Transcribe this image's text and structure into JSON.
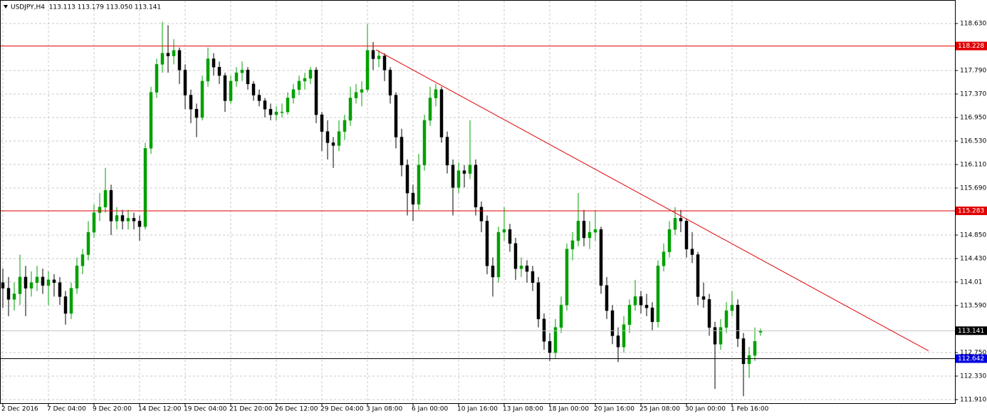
{
  "chart_data": {
    "type": "candlestick",
    "title": "USDJPY,H4  113.113 113.179 113.050 113.141",
    "up_color": "#00a000",
    "down_color": "#000000",
    "grid": true,
    "ylim": [
      111.846,
      119.05
    ],
    "yticks": [
      {
        "value": 118.63,
        "label": "118.630"
      },
      {
        "value": 117.79,
        "label": "117.790"
      },
      {
        "value": 117.37,
        "label": "117.370"
      },
      {
        "value": 116.95,
        "label": "116.950"
      },
      {
        "value": 116.53,
        "label": "116.530"
      },
      {
        "value": 116.11,
        "label": "116.110"
      },
      {
        "value": 115.69,
        "label": "115.690"
      },
      {
        "value": 114.85,
        "label": "114.850"
      },
      {
        "value": 114.43,
        "label": "114.430"
      },
      114.01,
      {
        "value": 113.59,
        "label": "113.590"
      },
      {
        "value": 112.75,
        "label": "112.750"
      },
      {
        "value": 112.33,
        "label": "112.330"
      },
      {
        "value": 111.91,
        "label": "111.910"
      }
    ],
    "levels": [
      {
        "value": 118.228,
        "line_color": "#e00000",
        "label_color": "#e00000"
      },
      {
        "value": 115.283,
        "line_color": "#e00000",
        "label_color": "#e00000"
      },
      {
        "value": 113.141,
        "line_color": "#c0c0c0",
        "label_color": "#000000"
      },
      {
        "value": 112.642,
        "line_color": "#000000",
        "label_color": "#0000e0"
      }
    ],
    "trendline": {
      "x": [
        65.5,
        162.5
      ],
      "values": [
        118.16,
        112.78
      ],
      "color": "#e00000"
    },
    "categories": [
      "2 Dec 2016",
      null,
      null,
      null,
      null,
      null,
      null,
      null,
      "7 Dec 04:00",
      null,
      null,
      null,
      null,
      null,
      null,
      null,
      "9 Dec 20:00",
      null,
      null,
      null,
      null,
      null,
      null,
      null,
      "14 Dec 12:00",
      null,
      null,
      null,
      null,
      null,
      null,
      null,
      "19 Dec 04:00",
      null,
      null,
      null,
      null,
      null,
      null,
      null,
      "21 Dec 20:00",
      null,
      null,
      null,
      null,
      null,
      null,
      null,
      "26 Dec 12:00",
      null,
      null,
      null,
      null,
      null,
      null,
      null,
      "29 Dec 04:00",
      null,
      null,
      null,
      null,
      null,
      null,
      null,
      "3 Jan 08:00",
      null,
      null,
      null,
      null,
      null,
      null,
      null,
      "6 Jan 00:00",
      null,
      null,
      null,
      null,
      null,
      null,
      null,
      "10 Jan 16:00",
      null,
      null,
      null,
      null,
      null,
      null,
      null,
      "13 Jan 08:00",
      null,
      null,
      null,
      null,
      null,
      null,
      null,
      "18 Jan 00:00",
      null,
      null,
      null,
      null,
      null,
      null,
      null,
      "20 Jan 16:00",
      null,
      null,
      null,
      null,
      null,
      null,
      null,
      "25 Jan 08:00",
      null,
      null,
      null,
      null,
      null,
      null,
      null,
      "30 Jan 00:00",
      null,
      null,
      null,
      null,
      null,
      null,
      null,
      "1 Feb 16:00",
      null,
      null,
      null,
      null,
      null
    ],
    "ohlc": [
      [
        114.0,
        114.25,
        113.55,
        113.9
      ],
      [
        113.9,
        114.1,
        113.4,
        113.7
      ],
      [
        113.7,
        114.0,
        113.5,
        113.8
      ],
      [
        113.8,
        114.5,
        113.6,
        114.1
      ],
      [
        114.1,
        114.3,
        113.4,
        113.9
      ],
      [
        113.9,
        114.2,
        113.75,
        114.0
      ],
      [
        114.0,
        114.3,
        113.85,
        114.1
      ],
      [
        114.1,
        114.25,
        113.8,
        113.95
      ],
      [
        113.95,
        114.2,
        113.6,
        114.05
      ],
      [
        114.05,
        114.15,
        113.75,
        114.0
      ],
      [
        114.0,
        114.1,
        113.6,
        113.75
      ],
      [
        113.75,
        113.85,
        113.25,
        113.45
      ],
      [
        113.45,
        114.0,
        113.35,
        113.9
      ],
      [
        113.9,
        114.45,
        113.8,
        114.3
      ],
      [
        114.3,
        114.6,
        114.15,
        114.5
      ],
      [
        114.5,
        115.1,
        114.4,
        114.9
      ],
      [
        114.9,
        115.4,
        114.8,
        115.25
      ],
      [
        115.25,
        115.6,
        115.1,
        115.35
      ],
      [
        115.35,
        116.05,
        115.25,
        115.65
      ],
      [
        115.65,
        115.75,
        114.85,
        115.1
      ],
      [
        115.1,
        115.35,
        114.95,
        115.2
      ],
      [
        115.2,
        115.3,
        114.95,
        115.1
      ],
      [
        115.1,
        115.3,
        114.95,
        115.15
      ],
      [
        115.15,
        115.25,
        114.95,
        115.1
      ],
      [
        115.1,
        115.2,
        114.75,
        115.0
      ],
      [
        115.0,
        116.5,
        114.95,
        116.4
      ],
      [
        116.4,
        117.5,
        116.3,
        117.4
      ],
      [
        117.4,
        118.0,
        117.3,
        117.9
      ],
      [
        117.9,
        118.66,
        117.75,
        118.1
      ],
      [
        118.1,
        118.6,
        117.75,
        118.05
      ],
      [
        118.05,
        118.35,
        117.9,
        118.15
      ],
      [
        118.15,
        118.2,
        117.55,
        117.8
      ],
      [
        117.8,
        117.9,
        117.1,
        117.35
      ],
      [
        117.35,
        117.45,
        116.85,
        117.1
      ],
      [
        117.1,
        117.2,
        116.6,
        116.95
      ],
      [
        116.95,
        117.7,
        116.9,
        117.6
      ],
      [
        117.6,
        118.2,
        117.5,
        118.0
      ],
      [
        118.0,
        118.1,
        117.7,
        117.85
      ],
      [
        117.85,
        117.95,
        117.55,
        117.7
      ],
      [
        117.7,
        117.75,
        117.05,
        117.25
      ],
      [
        117.25,
        117.7,
        117.2,
        117.6
      ],
      [
        117.6,
        117.85,
        117.5,
        117.75
      ],
      [
        117.75,
        117.95,
        117.6,
        117.8
      ],
      [
        117.8,
        117.85,
        117.45,
        117.55
      ],
      [
        117.55,
        117.6,
        117.25,
        117.35
      ],
      [
        117.35,
        117.45,
        117.15,
        117.25
      ],
      [
        117.25,
        117.3,
        116.95,
        117.1
      ],
      [
        117.1,
        117.2,
        116.9,
        117.0
      ],
      [
        117.0,
        117.15,
        116.9,
        117.05
      ],
      [
        117.05,
        117.2,
        116.95,
        117.05
      ],
      [
        117.05,
        117.4,
        117.0,
        117.3
      ],
      [
        117.3,
        117.55,
        117.2,
        117.45
      ],
      [
        117.45,
        117.7,
        117.35,
        117.6
      ],
      [
        117.6,
        117.75,
        117.45,
        117.65
      ],
      [
        117.65,
        117.85,
        117.55,
        117.8
      ],
      [
        117.8,
        117.85,
        116.85,
        117.0
      ],
      [
        117.0,
        117.05,
        116.35,
        116.7
      ],
      [
        116.7,
        116.9,
        116.2,
        116.5
      ],
      [
        116.5,
        116.6,
        116.05,
        116.45
      ],
      [
        116.45,
        116.9,
        116.35,
        116.7
      ],
      [
        116.7,
        117.0,
        116.55,
        116.9
      ],
      [
        116.9,
        117.5,
        116.8,
        117.3
      ],
      [
        117.3,
        117.55,
        117.2,
        117.4
      ],
      [
        117.4,
        117.6,
        117.15,
        117.45
      ],
      [
        117.45,
        118.62,
        117.4,
        118.15
      ],
      [
        118.15,
        118.3,
        117.8,
        118.0
      ],
      [
        118.0,
        118.15,
        117.85,
        118.05
      ],
      [
        118.05,
        118.1,
        117.6,
        117.8
      ],
      [
        117.8,
        117.85,
        117.2,
        117.35
      ],
      [
        117.35,
        117.4,
        116.4,
        116.6
      ],
      [
        116.6,
        116.75,
        115.9,
        116.1
      ],
      [
        116.1,
        116.2,
        115.2,
        115.6
      ],
      [
        115.6,
        115.75,
        115.1,
        115.4
      ],
      [
        115.4,
        116.3,
        115.3,
        116.1
      ],
      [
        116.1,
        117.0,
        116.0,
        116.9
      ],
      [
        116.9,
        117.5,
        116.8,
        117.3
      ],
      [
        117.3,
        117.55,
        117.15,
        117.45
      ],
      [
        117.45,
        117.5,
        116.5,
        116.6
      ],
      [
        116.6,
        116.7,
        115.95,
        116.1
      ],
      [
        116.1,
        116.2,
        115.2,
        115.7
      ],
      [
        115.7,
        116.15,
        115.6,
        116.0
      ],
      [
        116.0,
        116.1,
        115.7,
        115.95
      ],
      [
        115.95,
        116.9,
        115.85,
        116.1
      ],
      [
        116.1,
        116.2,
        115.2,
        115.35
      ],
      [
        115.35,
        115.45,
        114.9,
        115.1
      ],
      [
        115.1,
        115.2,
        114.15,
        114.3
      ],
      [
        114.3,
        114.45,
        113.75,
        114.1
      ],
      [
        114.1,
        115.0,
        114.0,
        114.9
      ],
      [
        114.9,
        115.35,
        114.75,
        114.95
      ],
      [
        114.95,
        115.05,
        114.55,
        114.7
      ],
      [
        114.7,
        114.8,
        114.05,
        114.25
      ],
      [
        114.25,
        114.45,
        114.1,
        114.3
      ],
      [
        114.3,
        114.4,
        114.0,
        114.2
      ],
      [
        114.2,
        114.3,
        113.85,
        114.0
      ],
      [
        114.0,
        114.1,
        113.2,
        113.35
      ],
      [
        113.35,
        113.45,
        112.8,
        112.95
      ],
      [
        112.95,
        113.1,
        112.6,
        112.75
      ],
      [
        112.75,
        113.35,
        112.65,
        113.2
      ],
      [
        113.2,
        113.75,
        113.1,
        113.6
      ],
      [
        113.6,
        114.7,
        113.5,
        114.6
      ],
      [
        114.6,
        114.9,
        114.4,
        114.75
      ],
      [
        114.75,
        115.6,
        114.65,
        115.1
      ],
      [
        115.1,
        115.3,
        114.65,
        114.8
      ],
      [
        114.8,
        115.1,
        114.6,
        114.9
      ],
      [
        114.9,
        115.3,
        114.75,
        114.95
      ],
      [
        114.95,
        115.0,
        113.8,
        113.95
      ],
      [
        113.95,
        114.1,
        113.35,
        113.5
      ],
      [
        113.5,
        113.6,
        112.9,
        113.05
      ],
      [
        113.05,
        113.2,
        112.58,
        112.85
      ],
      [
        112.85,
        113.4,
        112.75,
        113.25
      ],
      [
        113.25,
        113.7,
        113.1,
        113.6
      ],
      [
        113.6,
        114.05,
        113.5,
        113.75
      ],
      [
        113.75,
        113.85,
        113.45,
        113.6
      ],
      [
        113.6,
        113.8,
        113.4,
        113.55
      ],
      [
        113.55,
        113.65,
        113.15,
        113.3
      ],
      [
        113.3,
        114.4,
        113.2,
        114.3
      ],
      [
        114.3,
        114.7,
        114.2,
        114.55
      ],
      [
        114.55,
        115.1,
        114.45,
        114.95
      ],
      [
        114.95,
        115.35,
        114.85,
        115.15
      ],
      [
        115.15,
        115.3,
        114.9,
        115.1
      ],
      [
        115.1,
        115.15,
        114.45,
        114.6
      ],
      [
        114.6,
        114.9,
        114.35,
        114.5
      ],
      [
        114.5,
        114.55,
        113.6,
        113.75
      ],
      [
        113.75,
        114.0,
        113.55,
        113.7
      ],
      [
        113.7,
        113.8,
        113.05,
        113.2
      ],
      [
        113.2,
        113.3,
        112.1,
        112.9
      ],
      [
        112.9,
        113.35,
        112.8,
        113.2
      ],
      [
        113.2,
        113.65,
        113.1,
        113.5
      ],
      [
        113.5,
        113.85,
        113.4,
        113.6
      ],
      [
        113.6,
        113.7,
        112.85,
        113.0
      ],
      [
        113.0,
        113.1,
        111.97,
        112.55
      ],
      [
        112.55,
        112.85,
        112.3,
        112.7
      ],
      [
        112.7,
        113.2,
        112.6,
        112.95
      ],
      [
        113.113,
        113.179,
        113.05,
        113.141
      ]
    ]
  }
}
